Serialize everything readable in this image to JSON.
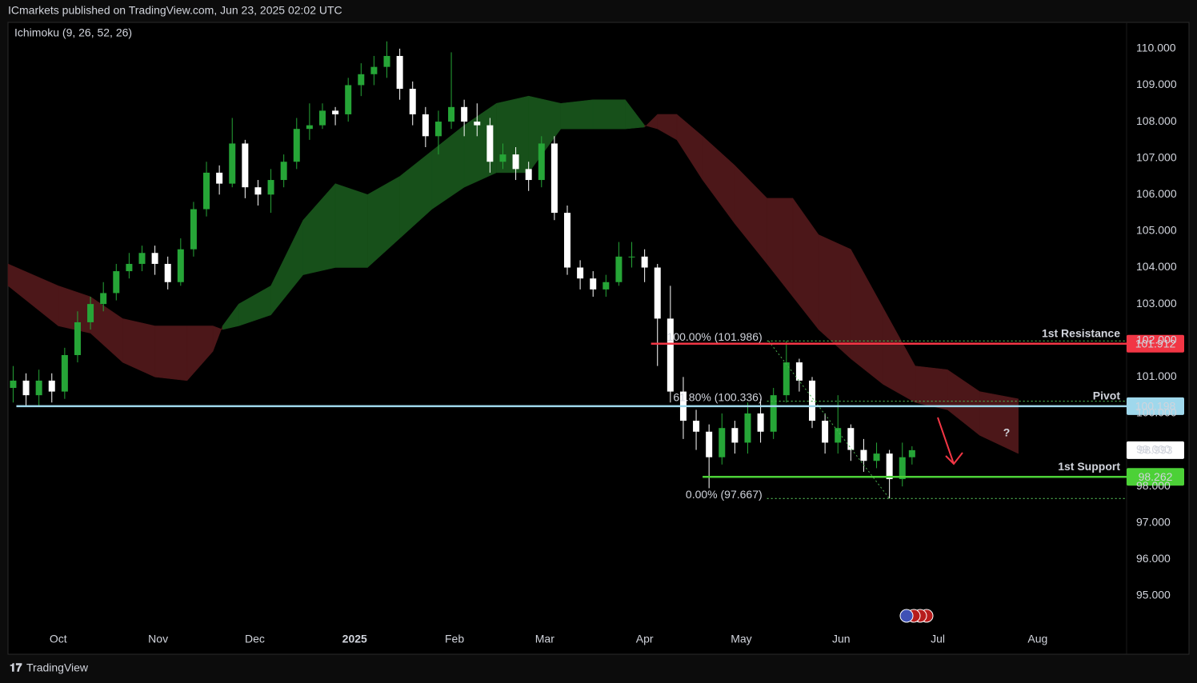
{
  "header": {
    "publisher": "ICmarkets published on TradingView.com, Jun 23, 2025 02:02 UTC",
    "footer": "TradingView"
  },
  "chart_data": {
    "type": "candlestick",
    "indicator": "Ichimoku (9, 26, 52, 26)",
    "xlim": [
      -15.6,
      331.6
    ],
    "xticks": [
      {
        "value": 0,
        "label": "Oct"
      },
      {
        "value": 31,
        "label": "Nov"
      },
      {
        "value": 61,
        "label": "Dec"
      },
      {
        "value": 92,
        "label": "2025"
      },
      {
        "value": 123,
        "label": "Feb"
      },
      {
        "value": 151,
        "label": "Mar"
      },
      {
        "value": 182,
        "label": "Apr"
      },
      {
        "value": 212,
        "label": "May"
      },
      {
        "value": 243,
        "label": "Jun"
      },
      {
        "value": 273,
        "label": "Jul"
      },
      {
        "value": 304,
        "label": "Aug"
      }
    ],
    "ylim": [
      93.4,
      110.72
    ],
    "yticks": [
      {
        "value": 95,
        "label": "95.000"
      },
      {
        "value": 96,
        "label": "96.000"
      },
      {
        "value": 97,
        "label": "97.000"
      },
      {
        "value": 98,
        "label": "98.000"
      },
      {
        "value": 99,
        "label": "99.000"
      },
      {
        "value": 100,
        "label": "100.000"
      },
      {
        "value": 101,
        "label": "101.000"
      },
      {
        "value": 102,
        "label": "102.000"
      },
      {
        "value": 103,
        "label": "103.000"
      },
      {
        "value": 104,
        "label": "104.000"
      },
      {
        "value": 105,
        "label": "105.000"
      },
      {
        "value": 106,
        "label": "106.000"
      },
      {
        "value": 107,
        "label": "107.000"
      },
      {
        "value": 108,
        "label": "108.000"
      },
      {
        "value": 109,
        "label": "109.000"
      },
      {
        "value": 110,
        "label": "110.000"
      }
    ],
    "candles": {
      "up_color": "#26a537",
      "down_color": "#ffffff",
      "x": [
        -14,
        -10,
        -6,
        -2,
        2,
        6,
        10,
        14,
        18,
        22,
        26,
        30,
        34,
        38,
        42,
        46,
        50,
        54,
        58,
        62,
        66,
        70,
        74,
        78,
        82,
        86,
        90,
        94,
        98,
        102,
        106,
        110,
        114,
        118,
        122,
        126,
        130,
        134,
        138,
        142,
        146,
        150,
        154,
        158,
        162,
        166,
        170,
        174,
        178,
        182,
        186,
        190,
        194,
        198,
        202,
        206,
        210,
        214,
        218,
        222,
        226,
        230,
        234,
        238,
        242,
        246,
        250,
        254,
        258,
        262,
        265
      ],
      "open": [
        100.7,
        100.9,
        100.5,
        100.9,
        100.6,
        101.6,
        102.5,
        103.0,
        103.3,
        103.9,
        104.1,
        104.4,
        104.1,
        103.6,
        104.5,
        105.6,
        106.6,
        106.3,
        107.4,
        106.2,
        106.0,
        106.4,
        106.9,
        107.8,
        107.9,
        108.3,
        108.2,
        109.0,
        109.3,
        109.5,
        109.8,
        108.9,
        108.2,
        107.6,
        108.0,
        108.4,
        108.0,
        107.9,
        106.9,
        107.1,
        106.7,
        106.4,
        107.4,
        105.5,
        104.0,
        103.7,
        103.4,
        103.6,
        104.3,
        104.3,
        104.0,
        102.6,
        100.6,
        99.8,
        99.5,
        98.8,
        99.6,
        99.2,
        100.0,
        99.5,
        100.5,
        101.4,
        100.9,
        99.8,
        99.2,
        99.6,
        99.0,
        98.7,
        98.9,
        98.2,
        98.8
      ],
      "high": [
        101.3,
        101.1,
        101.2,
        101.1,
        101.8,
        102.8,
        103.2,
        103.6,
        104.1,
        104.4,
        104.6,
        104.6,
        104.3,
        104.8,
        105.8,
        106.9,
        106.8,
        108.1,
        107.5,
        106.4,
        106.7,
        107.1,
        108.1,
        108.5,
        108.5,
        108.4,
        109.2,
        109.6,
        109.8,
        110.2,
        110.0,
        109.1,
        108.4,
        108.3,
        109.9,
        108.6,
        108.5,
        108.1,
        107.4,
        107.3,
        106.9,
        107.6,
        107.6,
        105.7,
        104.2,
        103.9,
        103.8,
        104.7,
        104.7,
        104.5,
        104.1,
        103.5,
        101.0,
        100.1,
        99.7,
        100.0,
        99.8,
        100.3,
        100.4,
        100.7,
        101.99,
        101.5,
        101.0,
        100.0,
        100.5,
        99.7,
        99.3,
        99.2,
        99.0,
        99.2,
        99.1
      ],
      "low": [
        100.3,
        100.2,
        100.2,
        100.3,
        100.4,
        101.4,
        102.3,
        102.8,
        103.1,
        103.7,
        103.9,
        103.8,
        103.4,
        103.5,
        104.3,
        105.4,
        106.0,
        106.2,
        105.9,
        105.7,
        105.5,
        106.2,
        106.7,
        107.5,
        107.8,
        107.9,
        108.0,
        108.7,
        109.0,
        109.2,
        108.6,
        107.9,
        107.3,
        107.1,
        107.8,
        107.6,
        107.6,
        106.6,
        106.7,
        106.4,
        106.1,
        106.2,
        105.3,
        103.8,
        103.4,
        103.2,
        103.2,
        103.5,
        104.0,
        103.6,
        101.3,
        100.3,
        99.3,
        99.0,
        97.95,
        98.6,
        98.9,
        98.9,
        99.2,
        99.3,
        100.3,
        100.6,
        99.6,
        98.9,
        98.9,
        98.7,
        98.4,
        98.5,
        97.67,
        98.0,
        98.6
      ],
      "close": [
        100.9,
        100.5,
        100.9,
        100.6,
        101.6,
        102.5,
        103.0,
        103.3,
        103.9,
        104.1,
        104.4,
        104.1,
        103.6,
        104.5,
        105.6,
        106.6,
        106.3,
        107.4,
        106.2,
        106.0,
        106.4,
        106.9,
        107.8,
        107.9,
        108.3,
        108.2,
        109.0,
        109.3,
        109.5,
        109.8,
        108.9,
        108.2,
        107.6,
        108.0,
        108.4,
        108.0,
        107.9,
        106.9,
        107.1,
        106.7,
        106.4,
        107.4,
        105.5,
        104.0,
        103.7,
        103.4,
        103.6,
        104.3,
        104.3,
        104.0,
        102.6,
        100.6,
        99.8,
        99.5,
        98.8,
        99.6,
        99.2,
        100.0,
        99.5,
        100.5,
        101.4,
        100.9,
        99.8,
        99.2,
        99.6,
        99.0,
        98.7,
        98.9,
        98.2,
        98.8,
        98.993
      ]
    },
    "cloud": {
      "bull_color": "#17501a",
      "bear_color": "#4c1719",
      "x": [
        -15.6,
        0,
        10,
        20,
        30,
        40,
        48,
        51,
        56,
        66,
        76,
        86,
        96,
        106,
        116,
        126,
        136,
        146,
        156,
        166,
        176,
        182,
        186,
        192,
        200,
        210,
        220,
        228,
        236,
        246,
        256,
        266,
        276,
        286,
        298
      ],
      "span_a": [
        103.5,
        102.4,
        102.2,
        101.4,
        101.0,
        100.9,
        101.7,
        102.4,
        103.0,
        103.5,
        105.3,
        106.3,
        106.0,
        106.5,
        107.2,
        107.9,
        108.5,
        108.7,
        108.5,
        108.6,
        108.6,
        107.9,
        107.8,
        107.5,
        106.4,
        105.2,
        104.1,
        103.2,
        102.3,
        101.5,
        100.8,
        100.3,
        100.1,
        99.4,
        98.9
      ],
      "span_b": [
        104.1,
        103.5,
        103.2,
        102.6,
        102.4,
        102.4,
        102.4,
        102.3,
        102.4,
        102.7,
        103.8,
        104.0,
        104.0,
        104.8,
        105.6,
        106.2,
        106.6,
        106.6,
        107.8,
        107.8,
        107.8,
        107.85,
        108.2,
        108.2,
        107.6,
        106.8,
        105.9,
        105.9,
        104.9,
        104.5,
        102.9,
        101.3,
        101.2,
        100.6,
        100.4
      ]
    },
    "levels": [
      {
        "name": "1st Resistance",
        "value": 101.912,
        "x_start": 184,
        "color": "#f23645"
      },
      {
        "name": "Pivot",
        "value": 100.198,
        "x_start": -13,
        "color": "#9fd8ec"
      },
      {
        "name": "1st Support",
        "value": 98.262,
        "x_start": 200,
        "color": "#4cd137"
      }
    ],
    "fib": {
      "x_start": 220,
      "color": "#4caf50",
      "levels": [
        {
          "value": 101.986,
          "label": "100.00% (101.986)"
        },
        {
          "value": 100.336,
          "label": "61.80% (100.336)"
        },
        {
          "value": 97.667,
          "label": "0.00% (97.667)"
        }
      ]
    },
    "last_price": 98.993,
    "annotation": "?"
  }
}
